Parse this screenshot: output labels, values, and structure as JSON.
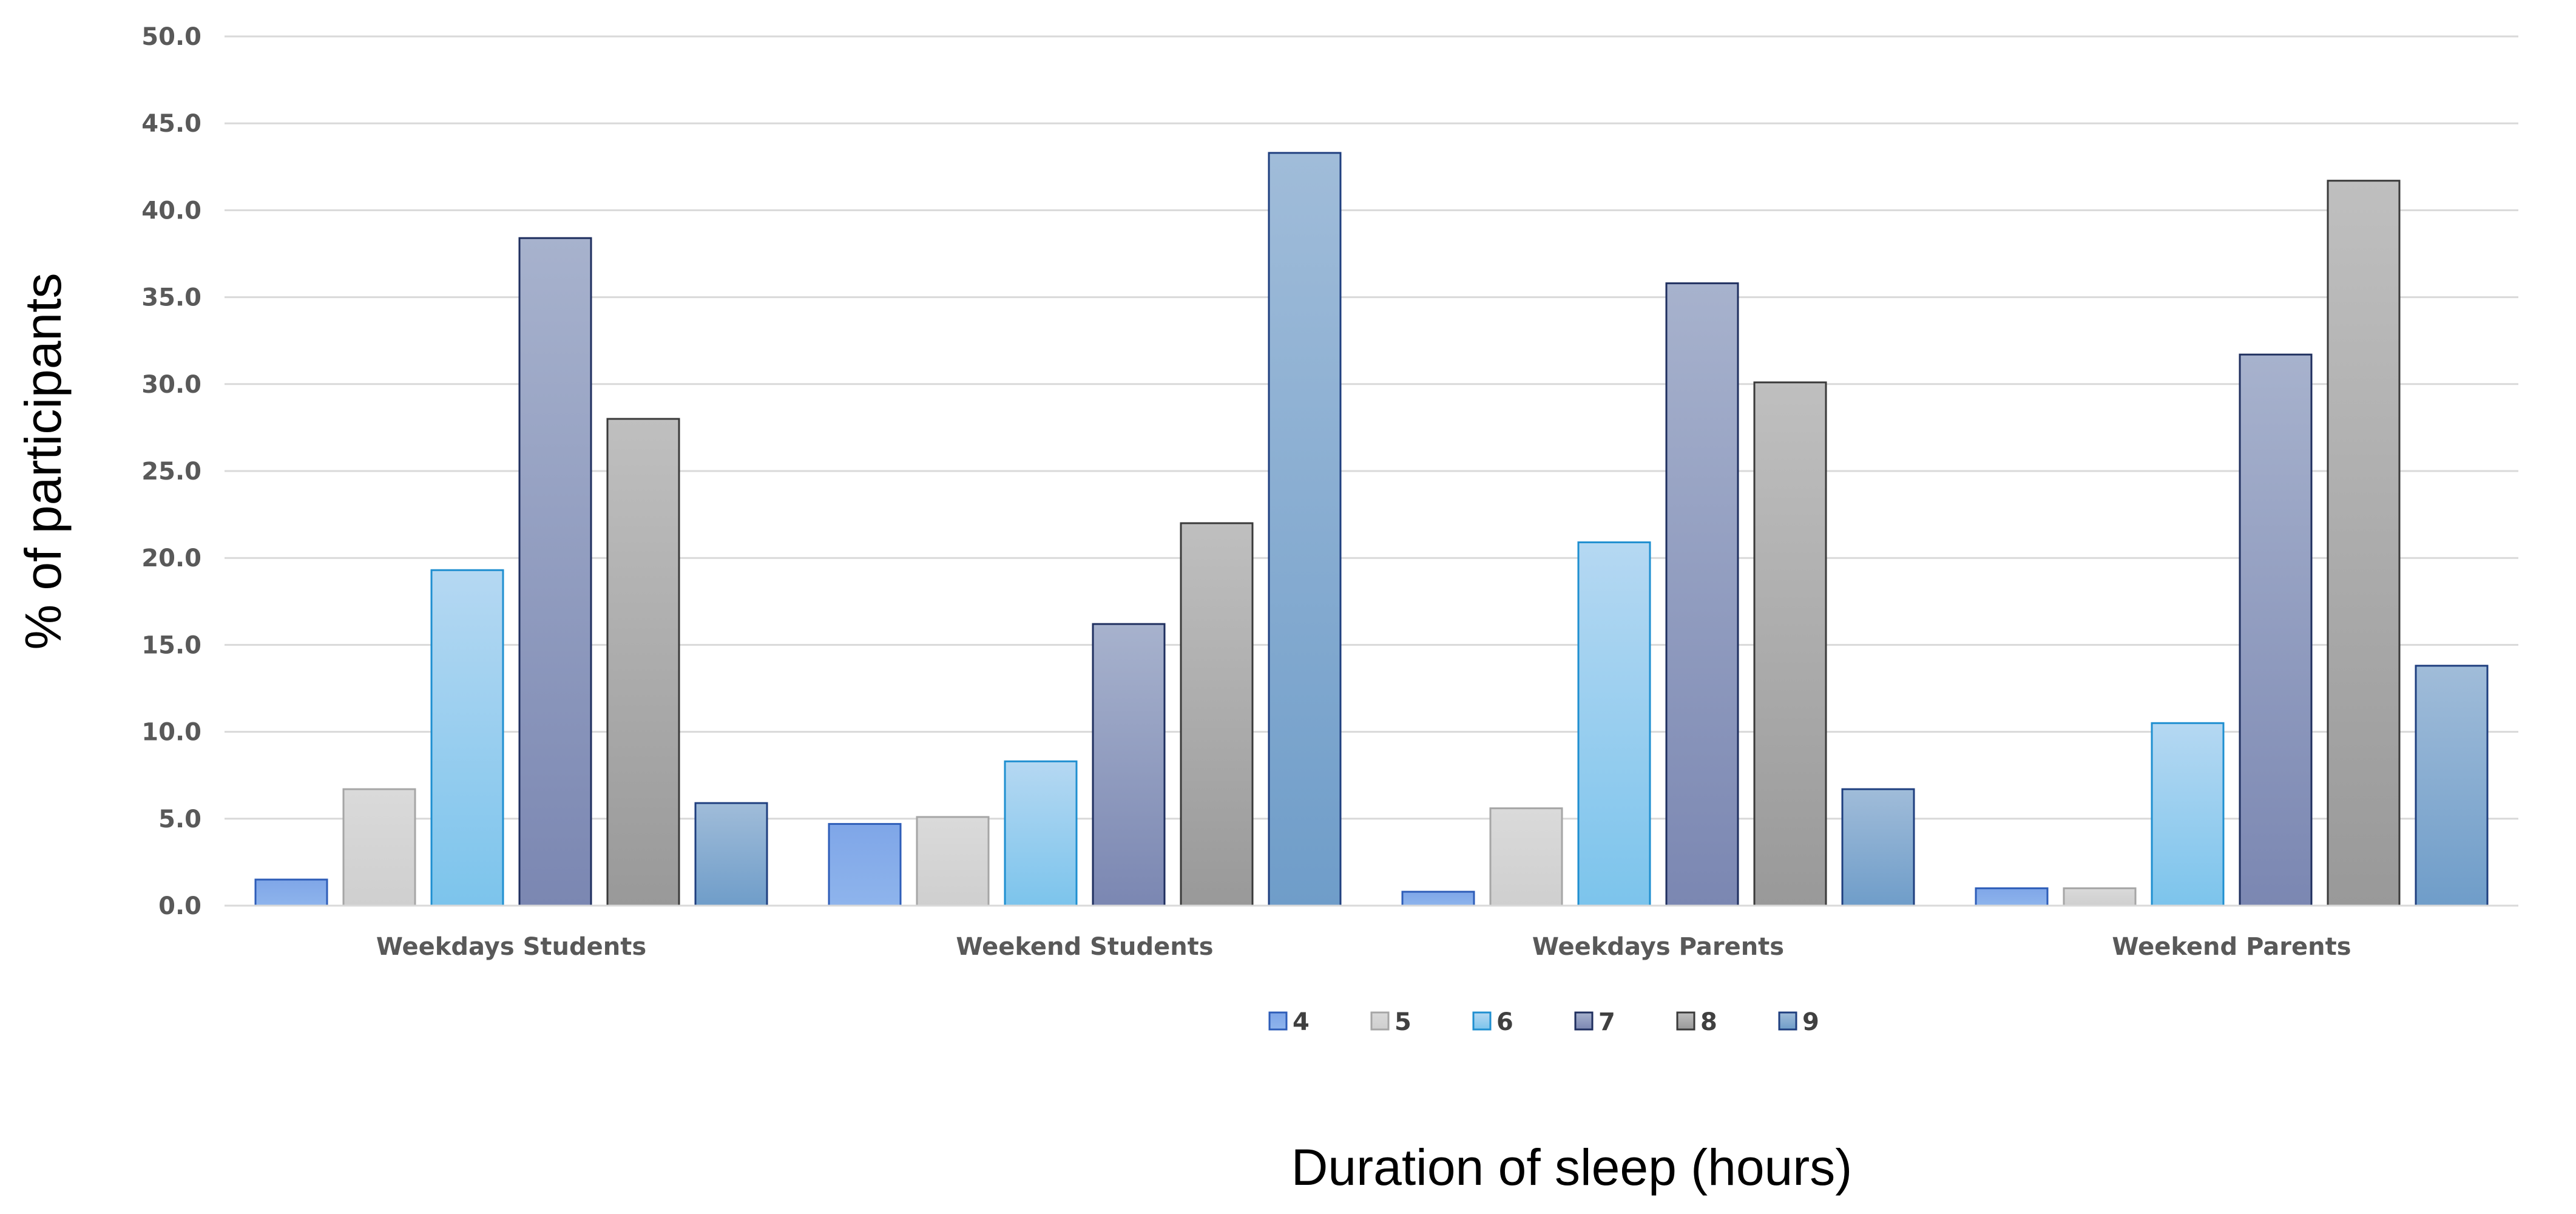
{
  "chart_data": {
    "type": "bar",
    "title": "",
    "xlabel": "Duration of sleep (hours)",
    "ylabel": "% of participants",
    "ylim": [
      0,
      50
    ],
    "yticks": [
      "0.0",
      "5.0",
      "10.0",
      "15.0",
      "20.0",
      "25.0",
      "30.0",
      "35.0",
      "40.0",
      "45.0",
      "50.0"
    ],
    "grid": true,
    "legend_position": "bottom",
    "categories": [
      "Weekdays Students",
      "Weekend  Students",
      "Weekdays Parents",
      "Weekend Parents"
    ],
    "series": [
      {
        "name": "4",
        "values": [
          1.5,
          4.7,
          0.8,
          1.0
        ],
        "color": "#7FA6E8",
        "color_bottom": "#8EB4EC",
        "edge": "#2E5DB8"
      },
      {
        "name": "5",
        "values": [
          6.7,
          5.1,
          5.6,
          1.0
        ],
        "color": "#DADADA",
        "color_bottom": "#CFCFCF",
        "edge": "#A6A6A6"
      },
      {
        "name": "6",
        "values": [
          19.3,
          8.3,
          20.9,
          10.5
        ],
        "color": "#B5D8F2",
        "color_bottom": "#7CC4EC",
        "edge": "#1F8FD0"
      },
      {
        "name": "7",
        "values": [
          38.4,
          16.2,
          35.8,
          31.7
        ],
        "color": "#A7B2CD",
        "color_bottom": "#7B87B2",
        "edge": "#1F2F5F"
      },
      {
        "name": "8",
        "values": [
          28.0,
          22.0,
          30.1,
          41.7
        ],
        "color": "#BFBFBF",
        "color_bottom": "#999999",
        "edge": "#3A3A3A"
      },
      {
        "name": "9",
        "values": [
          5.9,
          43.3,
          6.7,
          13.8
        ],
        "color": "#A0BCD9",
        "color_bottom": "#6F9DC9",
        "edge": "#1F3F7F"
      }
    ]
  }
}
